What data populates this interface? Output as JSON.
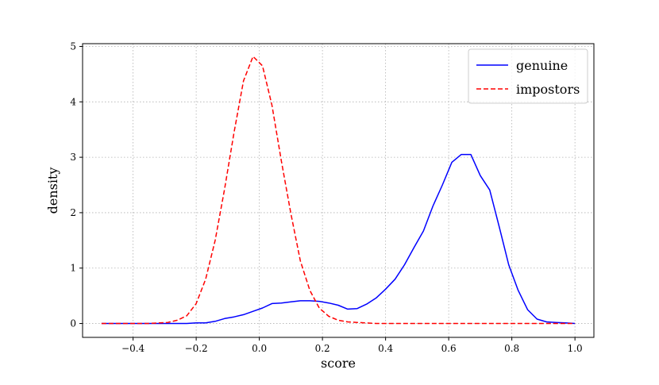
{
  "chart_data": {
    "type": "line",
    "title": "",
    "xlabel": "score",
    "ylabel": "density",
    "xlim": [
      -0.56,
      1.06
    ],
    "ylim": [
      -0.25,
      5.05
    ],
    "xticks": [
      -0.4,
      -0.2,
      0.0,
      0.2,
      0.4,
      0.6,
      0.8,
      1.0
    ],
    "xtick_labels": [
      "−0.4",
      "−0.2",
      "0.0",
      "0.2",
      "0.4",
      "0.6",
      "0.8",
      "1.0"
    ],
    "yticks": [
      0,
      1,
      2,
      3,
      4,
      5
    ],
    "ytick_labels": [
      "0",
      "1",
      "2",
      "3",
      "4",
      "5"
    ],
    "grid": true,
    "legend_position": "top-right",
    "series": [
      {
        "name": "genuine",
        "color": "#0000ff",
        "style": "solid",
        "x": [
          -0.5,
          -0.47,
          -0.44,
          -0.41,
          -0.38,
          -0.35,
          -0.32,
          -0.29,
          -0.26,
          -0.23,
          -0.2,
          -0.17,
          -0.14,
          -0.11,
          -0.08,
          -0.05,
          -0.02,
          0.01,
          0.04,
          0.07,
          0.1,
          0.13,
          0.16,
          0.19,
          0.22,
          0.25,
          0.28,
          0.31,
          0.34,
          0.37,
          0.4,
          0.43,
          0.46,
          0.49,
          0.52,
          0.55,
          0.58,
          0.61,
          0.64,
          0.67,
          0.7,
          0.73,
          0.76,
          0.79,
          0.82,
          0.85,
          0.88,
          0.91,
          0.94,
          0.97,
          1.0
        ],
        "y": [
          0.0,
          0.0,
          0.0,
          0.0,
          0.0,
          0.0,
          0.0,
          0.0,
          0.0,
          0.0,
          0.01,
          0.01,
          0.04,
          0.09,
          0.12,
          0.16,
          0.22,
          0.28,
          0.36,
          0.37,
          0.39,
          0.41,
          0.41,
          0.4,
          0.37,
          0.33,
          0.26,
          0.27,
          0.35,
          0.46,
          0.62,
          0.8,
          1.06,
          1.37,
          1.67,
          2.12,
          2.5,
          2.91,
          3.05,
          3.05,
          2.67,
          2.41,
          1.75,
          1.06,
          0.6,
          0.25,
          0.08,
          0.03,
          0.02,
          0.01,
          0.0
        ]
      },
      {
        "name": "impostors",
        "color": "#ff0000",
        "style": "dashed",
        "x": [
          -0.5,
          -0.47,
          -0.44,
          -0.41,
          -0.38,
          -0.35,
          -0.32,
          -0.29,
          -0.26,
          -0.23,
          -0.2,
          -0.17,
          -0.14,
          -0.11,
          -0.08,
          -0.05,
          -0.02,
          0.01,
          0.04,
          0.07,
          0.1,
          0.13,
          0.16,
          0.19,
          0.22,
          0.25,
          0.28,
          0.31,
          0.34,
          0.37,
          0.4,
          0.45,
          0.5,
          0.6,
          0.7,
          0.8,
          0.9,
          1.0
        ],
        "y": [
          0.0,
          0.0,
          0.0,
          0.0,
          0.0,
          0.0,
          0.01,
          0.02,
          0.06,
          0.14,
          0.36,
          0.8,
          1.5,
          2.43,
          3.45,
          4.38,
          4.82,
          4.65,
          3.94,
          2.93,
          1.98,
          1.13,
          0.6,
          0.28,
          0.13,
          0.06,
          0.03,
          0.02,
          0.01,
          0.0,
          0.0,
          0.0,
          0.0,
          0.0,
          0.0,
          0.0,
          0.0,
          0.0
        ]
      }
    ]
  }
}
